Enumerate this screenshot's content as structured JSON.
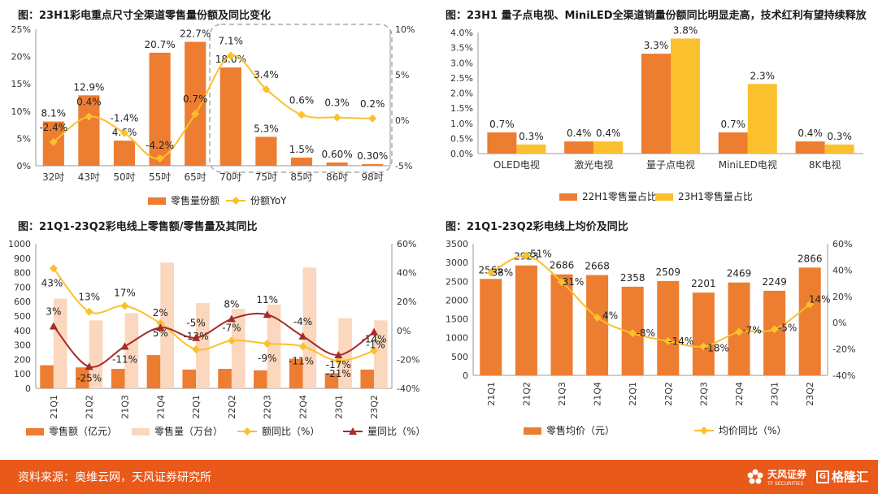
{
  "colors": {
    "orange": "#ed7d31",
    "lightOrange": "#fad7bd",
    "yellow": "#fbc02d",
    "darkRed": "#a52a2a",
    "footer": "#e8591a"
  },
  "charts": [
    {
      "title": "图：23H1彩电重点尺寸全渠道零售量份额及同比变化",
      "chart_data": {
        "type": "bar",
        "categories": [
          "32吋",
          "43吋",
          "50吋",
          "55吋",
          "65吋",
          "70吋",
          "75吋",
          "85吋",
          "86吋",
          "98吋"
        ],
        "series": [
          {
            "name": "零售量份额",
            "kind": "bar",
            "axis": "left",
            "values": [
              8.1,
              12.9,
              4.6,
              20.7,
              22.7,
              18.0,
              5.3,
              1.5,
              0.6,
              0.3
            ],
            "labels": [
              "8.1%",
              "12.9%",
              "4.6%",
              "20.7%",
              "22.7%",
              "18.0%",
              "5.3%",
              "1.5%",
              "0.60%",
              "0.30%"
            ]
          },
          {
            "name": "份额YoY",
            "kind": "line",
            "axis": "right",
            "values": [
              -2.4,
              0.4,
              -1.4,
              -4.2,
              0.7,
              7.1,
              3.4,
              0.6,
              0.3,
              0.2
            ],
            "labels": [
              "-2.4%",
              "0.4%",
              "-1.4%",
              "-4.2%",
              "0.7%",
              "7.1%",
              "3.4%",
              "0.6%",
              "0.3%",
              "0.2%"
            ]
          }
        ],
        "leftAxis": {
          "min": 0,
          "max": 25,
          "step": 5,
          "ticks": [
            "0%",
            "5%",
            "10%",
            "15%",
            "20%",
            "25%"
          ]
        },
        "rightAxis": {
          "min": -5,
          "max": 10,
          "step": 5,
          "ticks": [
            "-5%",
            "0%",
            "5%",
            "10%"
          ]
        },
        "highlight": [
          5,
          9
        ]
      }
    },
    {
      "title": "图：23H1 量子点电视、MiniLED全渠道销量份额同比明显走高，技术红利有望持续释放",
      "chart_data": {
        "type": "bar",
        "categories": [
          "OLED电视",
          "激光电视",
          "量子点电视",
          "MiniLED电视",
          "8K电视"
        ],
        "series": [
          {
            "name": "22H1零售量占比",
            "kind": "bar",
            "values": [
              0.7,
              0.4,
              3.3,
              0.7,
              0.4
            ],
            "labels": [
              "0.7%",
              "0.4%",
              "3.3%",
              "0.7%",
              "0.4%"
            ]
          },
          {
            "name": "23H1零售量占比",
            "kind": "bar",
            "values": [
              0.3,
              0.4,
              3.8,
              2.3,
              0.3
            ],
            "labels": [
              "0.3%",
              "0.4%",
              "3.8%",
              "2.3%",
              "0.3%"
            ]
          }
        ],
        "leftAxis": {
          "min": 0,
          "max": 4.0,
          "step": 0.5,
          "ticks": [
            "0.0%",
            "0.5%",
            "1.0%",
            "1.5%",
            "2.0%",
            "2.5%",
            "3.0%",
            "3.5%",
            "4.0%"
          ]
        }
      }
    },
    {
      "title": "图：21Q1-23Q2彩电线上零售额/零售量及其同比",
      "chart_data": {
        "type": "bar",
        "categories": [
          "21Q1",
          "21Q2",
          "21Q3",
          "21Q4",
          "22Q1",
          "22Q2",
          "22Q3",
          "22Q4",
          "23Q1",
          "23Q2"
        ],
        "series": [
          {
            "name": "零售额（亿元）",
            "kind": "bar",
            "axis": "left",
            "values": [
              160,
              145,
              135,
              230,
              130,
              135,
              125,
              205,
              105,
              130
            ]
          },
          {
            "name": "零售量（万台）",
            "kind": "bar",
            "axis": "left",
            "values": [
              620,
              470,
              520,
              870,
              590,
              550,
              580,
              835,
              485,
              470
            ]
          },
          {
            "name": "额同比（%）",
            "kind": "line",
            "axis": "right",
            "values": [
              43,
              13,
              17,
              5,
              -13,
              -7,
              -9,
              -11,
              -21,
              -14
            ],
            "labels": [
              "43%",
              "13%",
              "17%",
              "5%",
              "-13%",
              "-7%",
              "-9%",
              "-11%",
              "-21%",
              "-14%"
            ]
          },
          {
            "name": "量同比（%）",
            "kind": "line",
            "axis": "right",
            "values": [
              3,
              -25,
              -11,
              2,
              -5,
              8,
              11,
              -4,
              -17,
              -1
            ],
            "labels": [
              "3%",
              "-25%",
              "-11%",
              "2%",
              "-5%",
              "8%",
              "11%",
              "-4%",
              "-17%",
              "-1%"
            ]
          }
        ],
        "leftAxis": {
          "min": 0,
          "max": 1000,
          "step": 100,
          "ticks": [
            "0",
            "100",
            "200",
            "300",
            "400",
            "500",
            "600",
            "700",
            "800",
            "900",
            "1000"
          ]
        },
        "rightAxis": {
          "min": -40,
          "max": 60,
          "step": 20,
          "ticks": [
            "-40%",
            "-20%",
            "0%",
            "20%",
            "40%",
            "60%"
          ]
        }
      }
    },
    {
      "title": "图：21Q1-23Q2彩电线上均价及同比",
      "chart_data": {
        "type": "bar",
        "categories": [
          "21Q1",
          "21Q2",
          "21Q3",
          "21Q4",
          "22Q1",
          "22Q2",
          "22Q3",
          "22Q4",
          "23Q1",
          "23Q2"
        ],
        "series": [
          {
            "name": "零售均价（元）",
            "kind": "bar",
            "axis": "left",
            "values": [
              2565,
              2923,
              2686,
              2668,
              2358,
              2509,
              2201,
              2469,
              2249,
              2866
            ],
            "labels": [
              "2565",
              "2923",
              "2686",
              "2668",
              "2358",
              "2509",
              "2201",
              "2469",
              "2249",
              "2866"
            ]
          },
          {
            "name": "均价同比（%）",
            "kind": "line",
            "axis": "right",
            "values": [
              38,
              51,
              31,
              4,
              -8,
              -14,
              -18,
              -7,
              -5,
              14
            ],
            "labels": [
              "38%",
              "51%",
              "31%",
              "4%",
              "-8%",
              "-14%",
              "-18%",
              "-7%",
              "-5%",
              "14%"
            ]
          }
        ],
        "leftAxis": {
          "min": 0,
          "max": 3500,
          "step": 500,
          "ticks": [
            "0",
            "500",
            "1000",
            "1500",
            "2000",
            "2500",
            "3000",
            "3500"
          ]
        },
        "rightAxis": {
          "min": -40,
          "max": 60,
          "step": 20,
          "ticks": [
            "-40%",
            "-20%",
            "0%",
            "20%",
            "40%",
            "60%"
          ]
        }
      }
    }
  ],
  "footer": {
    "source": "资料来源：奥维云网，天风证券研究所",
    "brand1": "天风证券",
    "brand1_sub": "TF SECURITIES",
    "brand2_icon": "G",
    "brand2": "格隆汇"
  }
}
